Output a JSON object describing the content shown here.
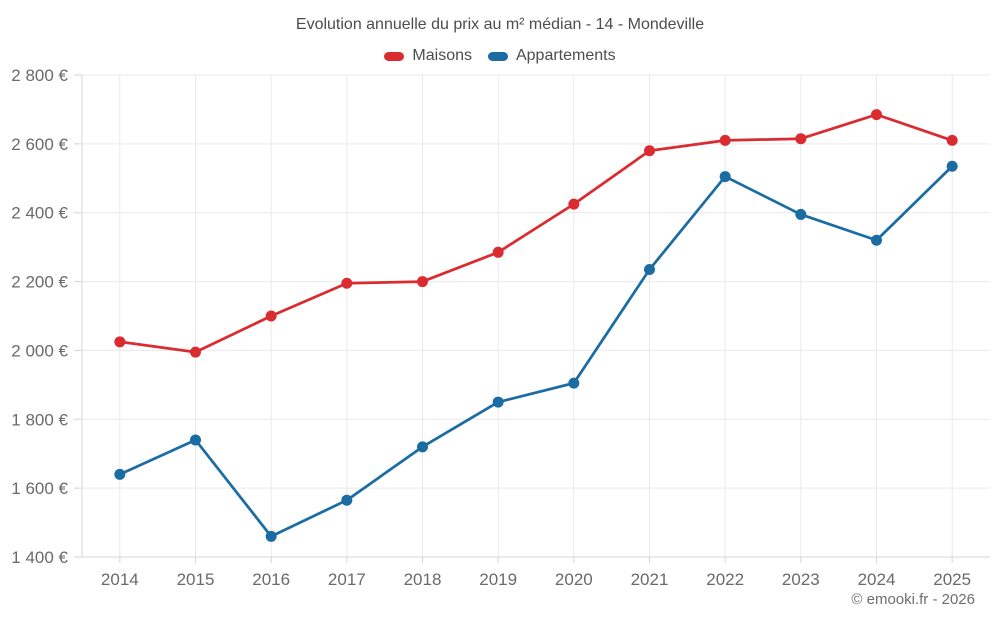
{
  "chart_data": {
    "type": "line",
    "title": "Evolution annuelle du prix au m² médian - 14 - Mondeville",
    "categories": [
      "2014",
      "2015",
      "2016",
      "2017",
      "2018",
      "2019",
      "2020",
      "2021",
      "2022",
      "2023",
      "2024",
      "2025"
    ],
    "series": [
      {
        "name": "Maisons",
        "color": "#da2c30",
        "values": [
          2025,
          1995,
          2100,
          2195,
          2200,
          2285,
          2425,
          2580,
          2610,
          2615,
          2685,
          2610
        ]
      },
      {
        "name": "Appartements",
        "color": "#1b6ca3",
        "values": [
          1640,
          1740,
          1460,
          1565,
          1720,
          1850,
          1905,
          2235,
          2505,
          2395,
          2320,
          2535
        ]
      }
    ],
    "xlabel": "",
    "ylabel": "",
    "ylim": [
      1400,
      2800
    ],
    "y_tick_step": 200,
    "y_ticks": [
      {
        "value": 1400,
        "label": "1 400 €"
      },
      {
        "value": 1600,
        "label": "1 600 €"
      },
      {
        "value": 1800,
        "label": "1 800 €"
      },
      {
        "value": 2000,
        "label": "2 000 €"
      },
      {
        "value": 2200,
        "label": "2 200 €"
      },
      {
        "value": 2400,
        "label": "2 400 €"
      },
      {
        "value": 2600,
        "label": "2 600 €"
      },
      {
        "value": 2800,
        "label": "2 800 €"
      }
    ],
    "grid": true,
    "legend_position": "top",
    "marker": "circle"
  },
  "footer": {
    "credit_label": "© emooki.fr - 2026"
  },
  "colors": {
    "background": "#ffffff",
    "gridline": "#e9e9e9",
    "axis": "#d6d6d6",
    "title_text": "#4d4d4d",
    "axis_text": "#6a6a6a",
    "credit_text": "#6e6e6e"
  }
}
